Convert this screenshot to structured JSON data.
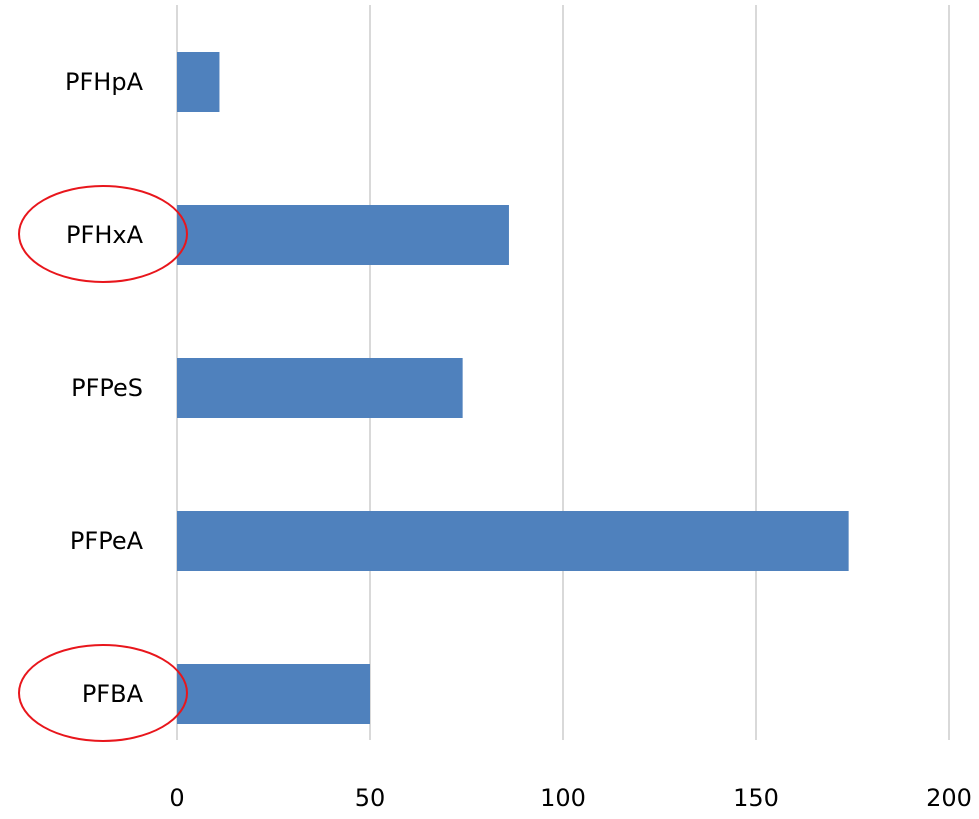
{
  "chart_data": {
    "type": "bar",
    "orientation": "horizontal",
    "categories": [
      "PFHpA",
      "PFHxA",
      "PFPeS",
      "PFPeA",
      "PFBA"
    ],
    "values": [
      11,
      86,
      74,
      174,
      50
    ],
    "xlim": [
      0,
      200
    ],
    "xticks": [
      0,
      50,
      100,
      150,
      200
    ],
    "xtick_labels": [
      "0",
      "50",
      "100",
      "150",
      "200"
    ],
    "grid": "vertical",
    "legend": "none",
    "highlighted_categories": [
      "PFHxA",
      "PFBA"
    ]
  },
  "colors": {
    "bar": "#4f81bd",
    "grid": "#d9d9d9",
    "highlight_ellipse": "#e8161c",
    "text": "#000000"
  }
}
